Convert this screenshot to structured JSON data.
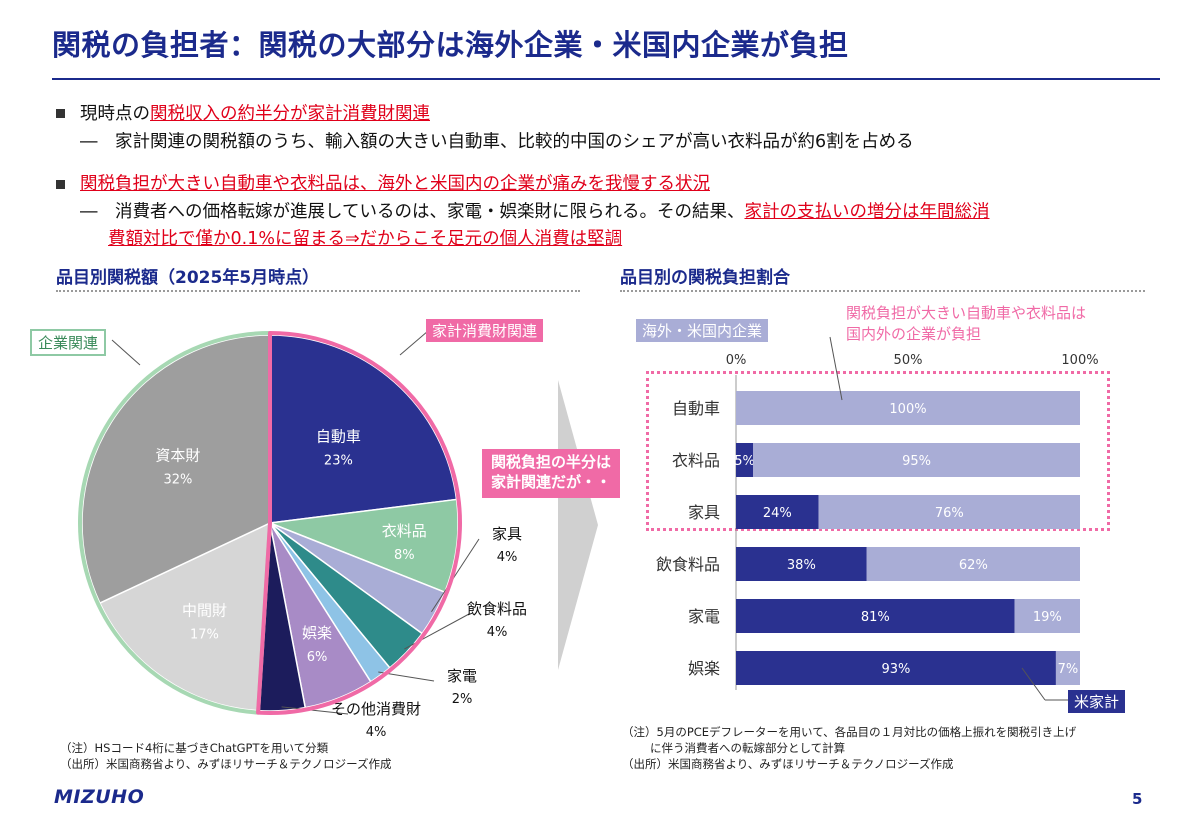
{
  "header": {
    "title": "関税の負担者：関税の大部分は海外企業・米国内企業が負担"
  },
  "bullets": [
    {
      "pre": "現時点の",
      "highlight": "関税収入の約半分が家計消費財関連",
      "sub": "家計関連の関税額のうち、輸入額の大きい自動車、比較的中国のシェアが高い衣料品が約6割を占める"
    },
    {
      "pre": "",
      "highlight": "関税負担が大きい自動車や衣料品は、海外と米国内の企業が痛みを我慢する状況",
      "sub_pre": "消費者への価格転嫁が進展しているのは、家電・娯楽財に限られる。その結果、",
      "sub_hl_1": "家計の支払いの増分は年間総消",
      "sub_hl_2": "費額対比で僅か0.1%に留まる⇒だからこそ足元の個人消費は堅調"
    }
  ],
  "left_panel": {
    "heading": "品目別関税額（2025年5月時点）",
    "tag_corporate": "企業関連",
    "tag_household": "家計消費財関連",
    "note_1": "（注）HSコード4桁に基づきChatGPTを用いて分類",
    "note_2": "（出所）米国商務省より、みずほリサーチ＆テクノロジーズ作成"
  },
  "callout": {
    "line1": "関税負担の半分は",
    "line2": "家計関連だが・・"
  },
  "right_panel": {
    "heading": "品目別の関税負担割合",
    "legend_overseas": "海外・米国内企業",
    "legend_household": "米家計",
    "annotation_line1": "関税負担が大きい自動車や衣料品は",
    "annotation_line2": "国内外の企業が負担",
    "note_1": "（注）5月のPCEデフレーターを用いて、各品目の１月対比の価格上振れを関税引き上げ",
    "note_2": "に伴う消費者への転嫁部分として計算",
    "note_3": "（出所）米国商務省より、みずほリサーチ＆テクノロジーズ作成"
  },
  "footer": {
    "logo": "MIZUHO",
    "page_number": "5"
  },
  "chart_data": [
    {
      "type": "pie",
      "title": "品目別関税額（2025年5月時点）",
      "slices": [
        {
          "label": "自動車",
          "value": 23,
          "value_label": "23%",
          "color": "#2a3190",
          "group": "household"
        },
        {
          "label": "衣料品",
          "value": 8,
          "value_label": "8%",
          "color": "#8ec9a4",
          "group": "household"
        },
        {
          "label": "家具",
          "value": 4,
          "value_label": "4%",
          "color": "#a9add6",
          "group": "household"
        },
        {
          "label": "飲食料品",
          "value": 4,
          "value_label": "4%",
          "color": "#2e8b8a",
          "group": "household"
        },
        {
          "label": "家電",
          "value": 2,
          "value_label": "2%",
          "color": "#8ec3e6",
          "group": "household"
        },
        {
          "label": "娯楽",
          "value": 6,
          "value_label": "6%",
          "color": "#a88bc6",
          "group": "household"
        },
        {
          "label": "その他消費財",
          "value": 4,
          "value_label": "4%",
          "color": "#1c1c5c",
          "group": "household"
        },
        {
          "label": "中間財",
          "value": 17,
          "value_label": "17%",
          "color": "#d6d6d6",
          "group": "corporate"
        },
        {
          "label": "資本財",
          "value": 32,
          "value_label": "32%",
          "color": "#9e9e9e",
          "group": "corporate"
        }
      ]
    },
    {
      "type": "bar",
      "orientation": "horizontal",
      "stacked": true,
      "title": "品目別の関税負担割合",
      "categories": [
        "自動車",
        "衣料品",
        "家具",
        "飲食料品",
        "家電",
        "娯楽"
      ],
      "xlim": [
        0,
        100
      ],
      "ticks": [
        "0%",
        "50%",
        "100%"
      ],
      "series": [
        {
          "name": "米家計",
          "color": "#2a3190",
          "values": [
            0,
            5,
            24,
            38,
            81,
            93
          ],
          "labels": [
            "",
            "5%",
            "24%",
            "38%",
            "81%",
            "93%"
          ]
        },
        {
          "name": "海外・米国内企業",
          "color": "#a9add6",
          "values": [
            100,
            95,
            76,
            62,
            19,
            7
          ],
          "labels": [
            "100%",
            "95%",
            "76%",
            "62%",
            "19%",
            "7%"
          ]
        }
      ]
    }
  ]
}
